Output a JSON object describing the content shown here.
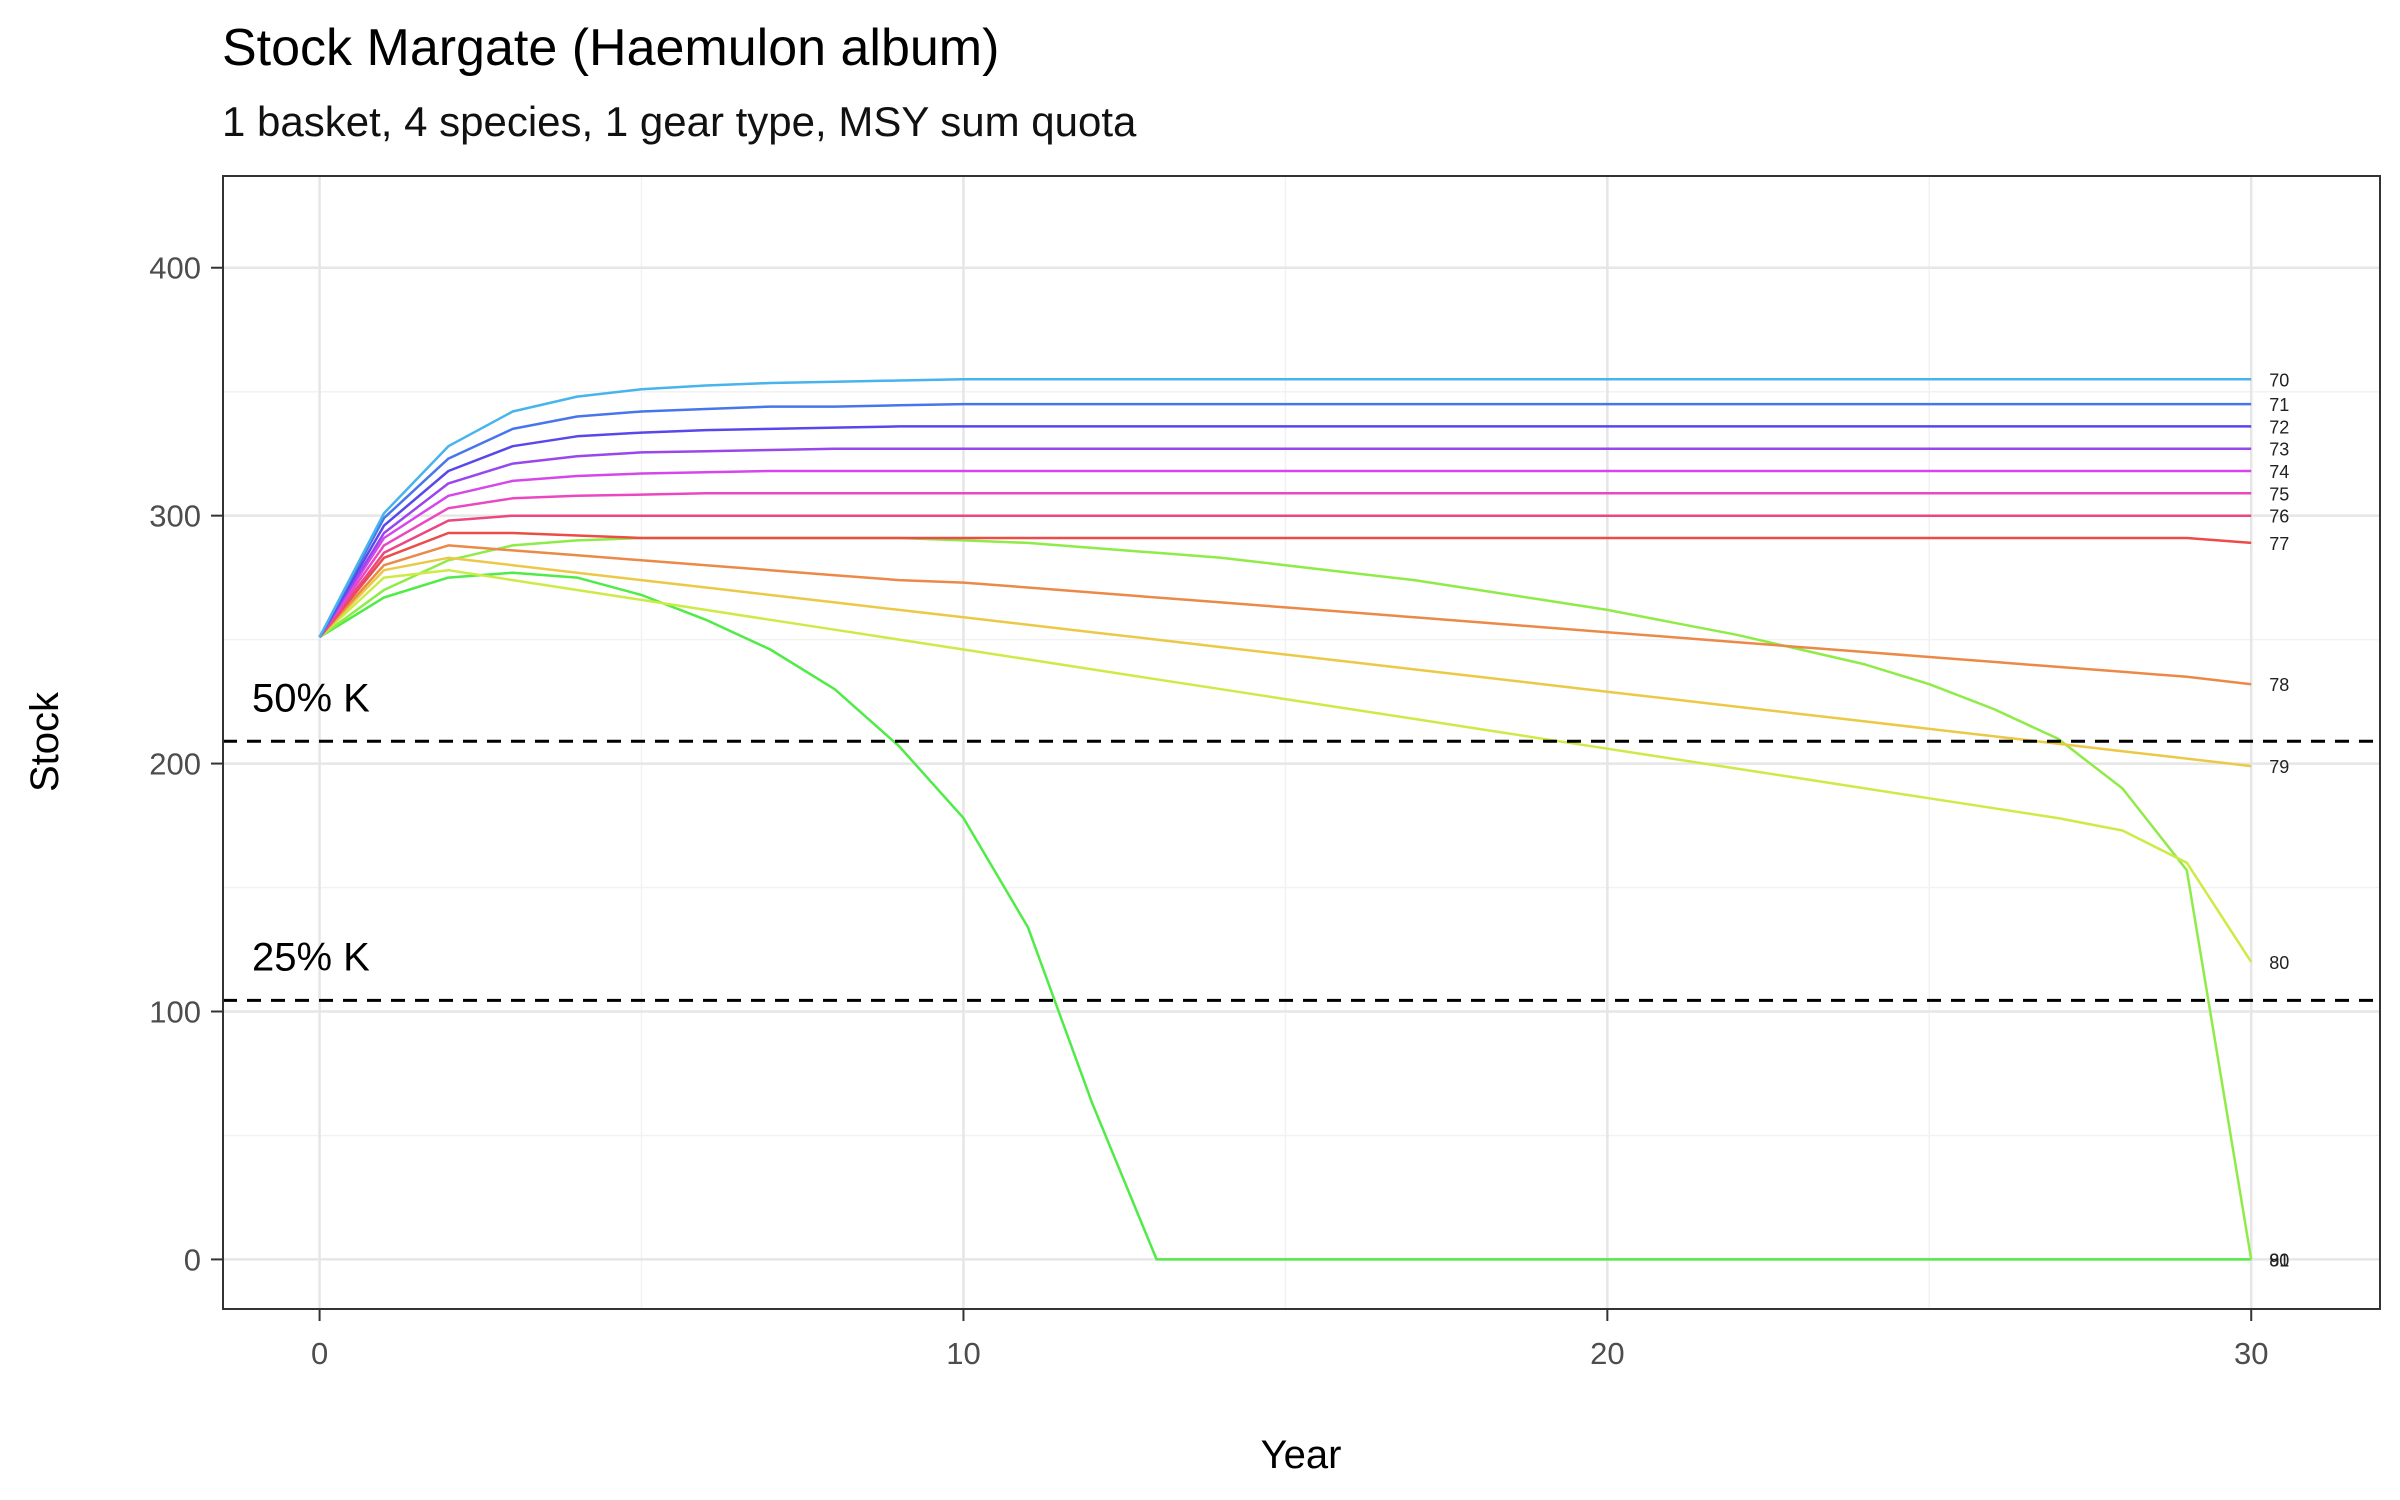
{
  "chart_data": {
    "type": "line",
    "title": "Stock Margate (Haemulon album)",
    "subtitle": "1 basket, 4 species, 1 gear type, MSY sum quota",
    "xlabel": "Year",
    "ylabel": "Stock",
    "xlim": [
      -1.5,
      32
    ],
    "ylim": [
      -20,
      437
    ],
    "xticks": [
      0,
      10,
      20,
      30
    ],
    "yticks": [
      0,
      100,
      200,
      300,
      400
    ],
    "grid": true,
    "legend": "none",
    "reference_lines": [
      {
        "label": "50% K",
        "y": 209
      },
      {
        "label": "25% K",
        "y": 104.5
      }
    ],
    "x": [
      0,
      1,
      2,
      3,
      4,
      5,
      6,
      7,
      8,
      9,
      10,
      11,
      12,
      13,
      14,
      15,
      16,
      17,
      18,
      19,
      20,
      21,
      22,
      23,
      24,
      25,
      26,
      27,
      28,
      29,
      30
    ],
    "series": [
      {
        "end_label": "70",
        "values": [
          251,
          301,
          328,
          342,
          348,
          351,
          352.5,
          353.5,
          354,
          354.5,
          355,
          355,
          355,
          355,
          355,
          355,
          355,
          355,
          355,
          355,
          355,
          355,
          355,
          355,
          355,
          355,
          355,
          355,
          355,
          355,
          355
        ]
      },
      {
        "end_label": "71",
        "values": [
          251,
          299,
          323,
          335,
          340,
          342,
          343,
          344,
          344,
          344.5,
          345,
          345,
          345,
          345,
          345,
          345,
          345,
          345,
          345,
          345,
          345,
          345,
          345,
          345,
          345,
          345,
          345,
          345,
          345,
          345,
          345
        ]
      },
      {
        "end_label": "72",
        "values": [
          251,
          296,
          318,
          328,
          332,
          333.5,
          334.5,
          335,
          335.5,
          336,
          336,
          336,
          336,
          336,
          336,
          336,
          336,
          336,
          336,
          336,
          336,
          336,
          336,
          336,
          336,
          336,
          336,
          336,
          336,
          336,
          336
        ]
      },
      {
        "end_label": "73",
        "values": [
          251,
          293,
          313,
          321,
          324,
          325.5,
          326,
          326.5,
          327,
          327,
          327,
          327,
          327,
          327,
          327,
          327,
          327,
          327,
          327,
          327,
          327,
          327,
          327,
          327,
          327,
          327,
          327,
          327,
          327,
          327,
          327
        ]
      },
      {
        "end_label": "74",
        "values": [
          251,
          291,
          308,
          314,
          316,
          317,
          317.5,
          318,
          318,
          318,
          318,
          318,
          318,
          318,
          318,
          318,
          318,
          318,
          318,
          318,
          318,
          318,
          318,
          318,
          318,
          318,
          318,
          318,
          318,
          318,
          318
        ]
      },
      {
        "end_label": "75",
        "values": [
          251,
          288,
          303,
          307,
          308,
          308.5,
          309,
          309,
          309,
          309,
          309,
          309,
          309,
          309,
          309,
          309,
          309,
          309,
          309,
          309,
          309,
          309,
          309,
          309,
          309,
          309,
          309,
          309,
          309,
          309,
          309
        ]
      },
      {
        "end_label": "76",
        "values": [
          251,
          285,
          298,
          300,
          300,
          300,
          300,
          300,
          300,
          300,
          300,
          300,
          300,
          300,
          300,
          300,
          300,
          300,
          300,
          300,
          300,
          300,
          300,
          300,
          300,
          300,
          300,
          300,
          300,
          300,
          300
        ]
      },
      {
        "end_label": "77",
        "values": [
          251,
          283,
          293,
          293,
          292,
          291,
          291,
          291,
          291,
          291,
          291,
          291,
          291,
          291,
          291,
          291,
          291,
          291,
          291,
          291,
          291,
          291,
          291,
          291,
          291,
          291,
          291,
          291,
          291,
          291,
          289
        ]
      },
      {
        "end_label": "78",
        "values": [
          251,
          280,
          288,
          286,
          284,
          282,
          280,
          278,
          276,
          274,
          273,
          271,
          269,
          267,
          265,
          263,
          261,
          259,
          257,
          255,
          253,
          251,
          249,
          247,
          245,
          243,
          241,
          239,
          237,
          235,
          232
        ]
      },
      {
        "end_label": "79",
        "values": [
          251,
          278,
          283,
          280,
          277,
          274,
          271,
          268,
          265,
          262,
          259,
          256,
          253,
          250,
          247,
          244,
          241,
          238,
          235,
          232,
          229,
          226,
          223,
          220,
          217,
          214,
          211,
          208,
          205,
          202,
          199
        ]
      },
      {
        "end_label": "80",
        "values": [
          251,
          275,
          278,
          274,
          270,
          266,
          262,
          258,
          254,
          250,
          246,
          242,
          238,
          234,
          230,
          226,
          222,
          218,
          214,
          210,
          206,
          202,
          198,
          194,
          190,
          186,
          182,
          178,
          173,
          160,
          120
        ]
      },
      {
        "end_label": "81",
        "values": [
          251,
          270,
          282,
          288,
          290,
          291,
          291,
          291,
          291,
          291,
          290,
          289,
          287,
          285,
          283,
          280,
          277,
          274,
          270,
          266,
          262,
          257,
          252,
          246,
          240,
          232,
          222,
          210,
          190,
          157,
          0
        ]
      },
      {
        "end_label": "90",
        "values": [
          251,
          267,
          275,
          277,
          275,
          268,
          258,
          246,
          230,
          207,
          178,
          134,
          63,
          0,
          0,
          0,
          0,
          0,
          0,
          0,
          0,
          0,
          0,
          0,
          0,
          0,
          0,
          0,
          0,
          0,
          0
        ]
      }
    ]
  }
}
